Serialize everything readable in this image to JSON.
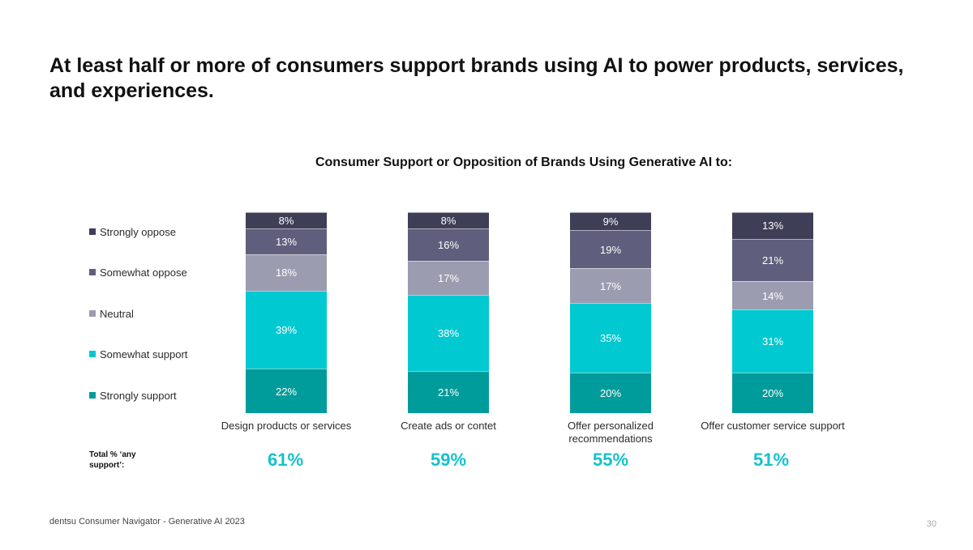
{
  "headline": "At least half or more of consumers support brands using AI to power products, services, and experiences.",
  "footer": "dentsu Consumer Navigator - Generative AI 2023",
  "page_number": "30",
  "total_label": "Total % ‘any support’:",
  "totals": [
    "61%",
    "59%",
    "55%",
    "51%"
  ],
  "colors": {
    "strongly_oppose": "#3f3e57",
    "somewhat_oppose": "#5f5f7d",
    "neutral": "#9c9cb1",
    "somewhat_support": "#00c9d1",
    "strongly_support": "#009c9b",
    "total_accent": "#14c2cc"
  },
  "chart_data": {
    "type": "bar",
    "stacked": true,
    "title": "Consumer Support or Opposition of Brands Using Generative AI to:",
    "categories": [
      "Design products or services",
      "Create ads or contet",
      "Offer personalized recommendations",
      "Offer customer service support"
    ],
    "series": [
      {
        "name": "Strongly support",
        "values": [
          22,
          21,
          20,
          20
        ],
        "color": "#009c9b"
      },
      {
        "name": "Somewhat support",
        "values": [
          39,
          38,
          35,
          31
        ],
        "color": "#00c9d1"
      },
      {
        "name": "Neutral",
        "values": [
          18,
          17,
          17,
          14
        ],
        "color": "#9c9cb1"
      },
      {
        "name": "Somewhat oppose",
        "values": [
          13,
          16,
          19,
          21
        ],
        "color": "#5f5f7d"
      },
      {
        "name": "Strongly oppose",
        "values": [
          8,
          8,
          9,
          13
        ],
        "color": "#3f3e57"
      }
    ],
    "value_suffix": "%",
    "legend_position": "left",
    "legend_order": [
      "Strongly oppose",
      "Somewhat oppose",
      "Neutral",
      "Somewhat support",
      "Strongly support"
    ],
    "grid": false
  }
}
